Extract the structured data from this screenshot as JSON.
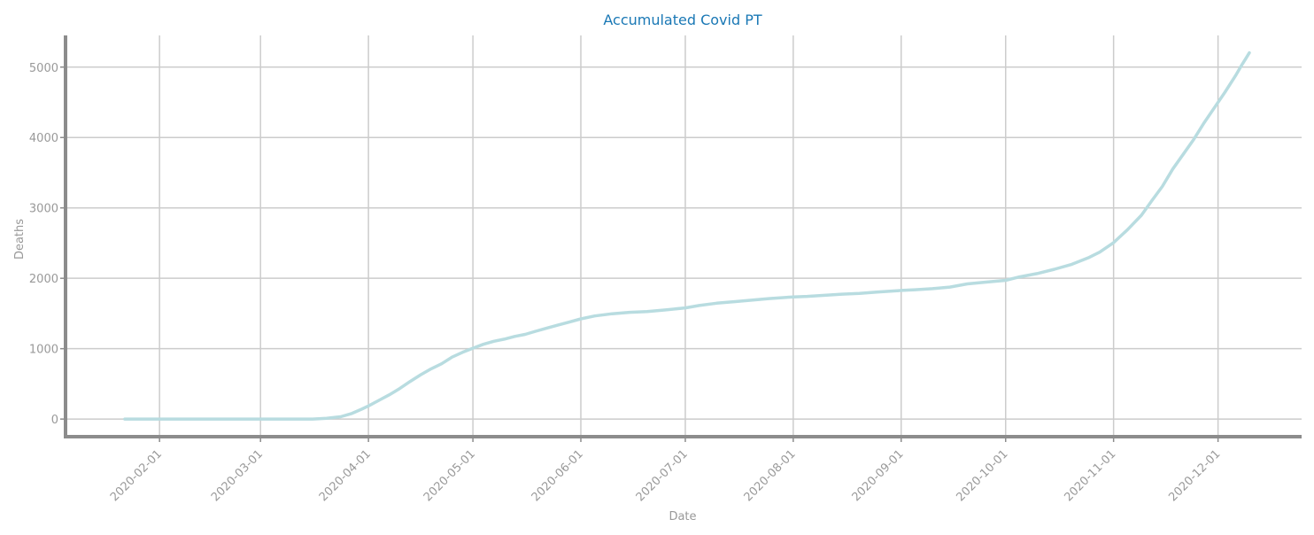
{
  "chart_data": {
    "type": "line",
    "title": "Accumulated Covid PT",
    "xlabel": "Date",
    "ylabel": "Deaths",
    "x_tick_labels": [
      "2020-02-01",
      "2020-03-01",
      "2020-04-01",
      "2020-05-01",
      "2020-06-01",
      "2020-07-01",
      "2020-08-01",
      "2020-09-01",
      "2020-10-01",
      "2020-11-01",
      "2020-12-01"
    ],
    "y_tick_labels": [
      "0",
      "1000",
      "2000",
      "3000",
      "4000",
      "5000"
    ],
    "y_ticks": [
      0,
      1000,
      2000,
      3000,
      4000,
      5000
    ],
    "xlim": [
      "2020-01-05",
      "2020-12-25"
    ],
    "ylim": [
      -250,
      5450
    ],
    "grid": true,
    "series": [
      {
        "points": [
          [
            "2020-01-22",
            0
          ],
          [
            "2020-02-01",
            0
          ],
          [
            "2020-02-15",
            0
          ],
          [
            "2020-03-01",
            0
          ],
          [
            "2020-03-10",
            0
          ],
          [
            "2020-03-16",
            1
          ],
          [
            "2020-03-20",
            12
          ],
          [
            "2020-03-24",
            33
          ],
          [
            "2020-03-27",
            76
          ],
          [
            "2020-03-30",
            140
          ],
          [
            "2020-04-01",
            187
          ],
          [
            "2020-04-04",
            266
          ],
          [
            "2020-04-07",
            345
          ],
          [
            "2020-04-10",
            435
          ],
          [
            "2020-04-13",
            535
          ],
          [
            "2020-04-16",
            629
          ],
          [
            "2020-04-19",
            714
          ],
          [
            "2020-04-22",
            785
          ],
          [
            "2020-04-25",
            880
          ],
          [
            "2020-04-28",
            948
          ],
          [
            "2020-05-01",
            1007
          ],
          [
            "2020-05-04",
            1063
          ],
          [
            "2020-05-07",
            1105
          ],
          [
            "2020-05-10",
            1135
          ],
          [
            "2020-05-13",
            1175
          ],
          [
            "2020-05-16",
            1203
          ],
          [
            "2020-05-19",
            1247
          ],
          [
            "2020-05-22",
            1289
          ],
          [
            "2020-05-25",
            1330
          ],
          [
            "2020-05-28",
            1369
          ],
          [
            "2020-06-01",
            1424
          ],
          [
            "2020-06-05",
            1465
          ],
          [
            "2020-06-10",
            1497
          ],
          [
            "2020-06-15",
            1517
          ],
          [
            "2020-06-20",
            1527
          ],
          [
            "2020-06-25",
            1549
          ],
          [
            "2020-07-01",
            1579
          ],
          [
            "2020-07-05",
            1614
          ],
          [
            "2020-07-10",
            1646
          ],
          [
            "2020-07-15",
            1668
          ],
          [
            "2020-07-20",
            1689
          ],
          [
            "2020-07-25",
            1712
          ],
          [
            "2020-08-01",
            1735
          ],
          [
            "2020-08-05",
            1743
          ],
          [
            "2020-08-10",
            1758
          ],
          [
            "2020-08-15",
            1775
          ],
          [
            "2020-08-20",
            1785
          ],
          [
            "2020-08-25",
            1805
          ],
          [
            "2020-09-01",
            1827
          ],
          [
            "2020-09-05",
            1838
          ],
          [
            "2020-09-10",
            1852
          ],
          [
            "2020-09-15",
            1875
          ],
          [
            "2020-09-20",
            1920
          ],
          [
            "2020-09-25",
            1945
          ],
          [
            "2020-10-01",
            1971
          ],
          [
            "2020-10-05",
            2020
          ],
          [
            "2020-10-10",
            2067
          ],
          [
            "2020-10-15",
            2128
          ],
          [
            "2020-10-20",
            2198
          ],
          [
            "2020-10-25",
            2297
          ],
          [
            "2020-10-28",
            2371
          ],
          [
            "2020-11-01",
            2507
          ],
          [
            "2020-11-05",
            2691
          ],
          [
            "2020-11-09",
            2896
          ],
          [
            "2020-11-12",
            3103
          ],
          [
            "2020-11-15",
            3305
          ],
          [
            "2020-11-18",
            3553
          ],
          [
            "2020-11-21",
            3762
          ],
          [
            "2020-11-24",
            3972
          ],
          [
            "2020-11-27",
            4209
          ],
          [
            "2020-11-30",
            4427
          ],
          [
            "2020-12-03",
            4645
          ],
          [
            "2020-12-06",
            4876
          ],
          [
            "2020-12-08",
            5044
          ],
          [
            "2020-12-09",
            5124
          ],
          [
            "2020-12-10",
            5203
          ]
        ]
      }
    ]
  },
  "colors": {
    "title": "#1a78b5",
    "axis_text": "#999999",
    "grid": "#cccccc",
    "spine": "#8c8c8c",
    "line": "#b8dce0"
  }
}
